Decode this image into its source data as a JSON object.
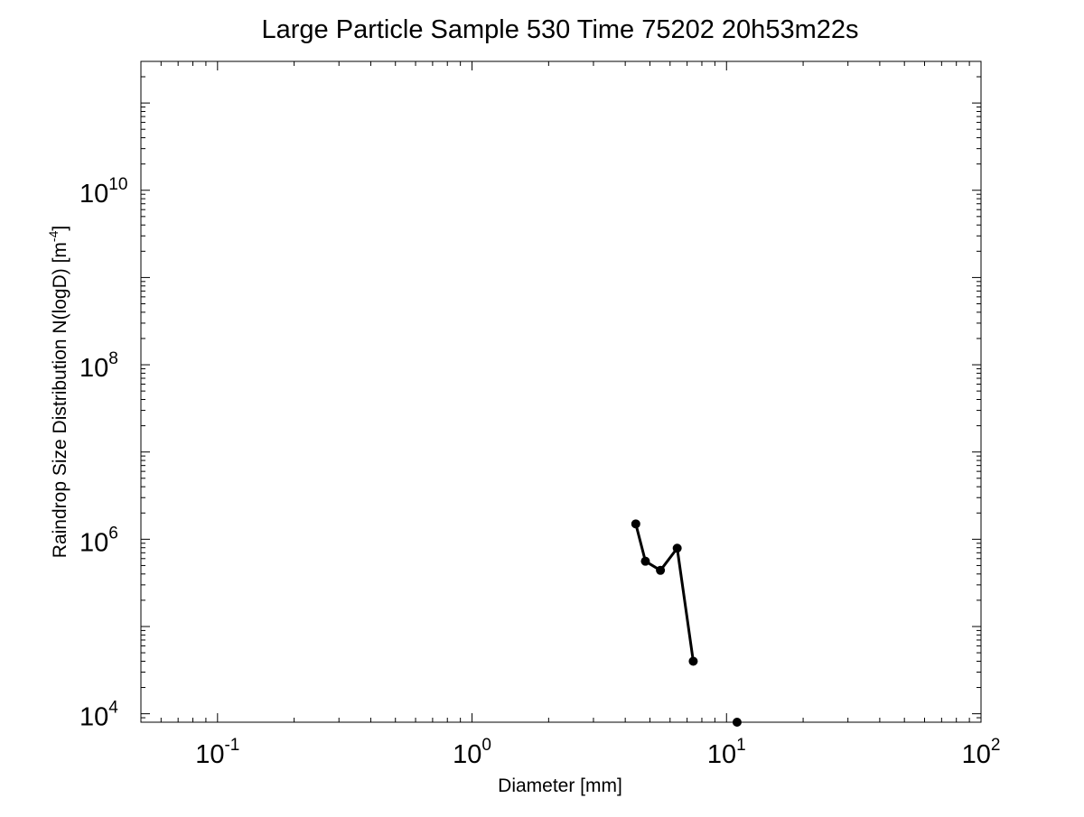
{
  "chart_data": {
    "type": "line",
    "title": "Large Particle Sample 530 Time 75202 20h53m22s",
    "xlabel": "Diameter [mm]",
    "ylabel": "Raindrop Size Distribution N(logD) [m",
    "ylabel_exponent": "-4",
    "ylabel_suffix": "]",
    "x_scale": "log",
    "y_scale": "log",
    "xlim": [
      0.05,
      100
    ],
    "ylim": [
      8000,
      300000000000
    ],
    "grid": false,
    "x_ticks": [
      {
        "value": 0.1,
        "base": "10",
        "exp": "-1"
      },
      {
        "value": 1,
        "base": "10",
        "exp": "0"
      },
      {
        "value": 10,
        "base": "10",
        "exp": "1"
      },
      {
        "value": 100,
        "base": "10",
        "exp": "2"
      }
    ],
    "y_ticks": [
      {
        "value": 10000,
        "base": "10",
        "exp": "4"
      },
      {
        "value": 1000000,
        "base": "10",
        "exp": "6"
      },
      {
        "value": 100000000,
        "base": "10",
        "exp": "8"
      },
      {
        "value": 10000000000,
        "base": "10",
        "exp": "10"
      }
    ],
    "series": [
      {
        "color": "#000000",
        "marker": "circle",
        "x": [
          4.4,
          4.8,
          5.5,
          6.4,
          7.4
        ],
        "y": [
          1500000,
          560000,
          440000,
          790000,
          40000
        ]
      },
      {
        "color": "#000000",
        "marker": "circle",
        "x": [
          11.0
        ],
        "y": [
          8000
        ]
      }
    ]
  }
}
